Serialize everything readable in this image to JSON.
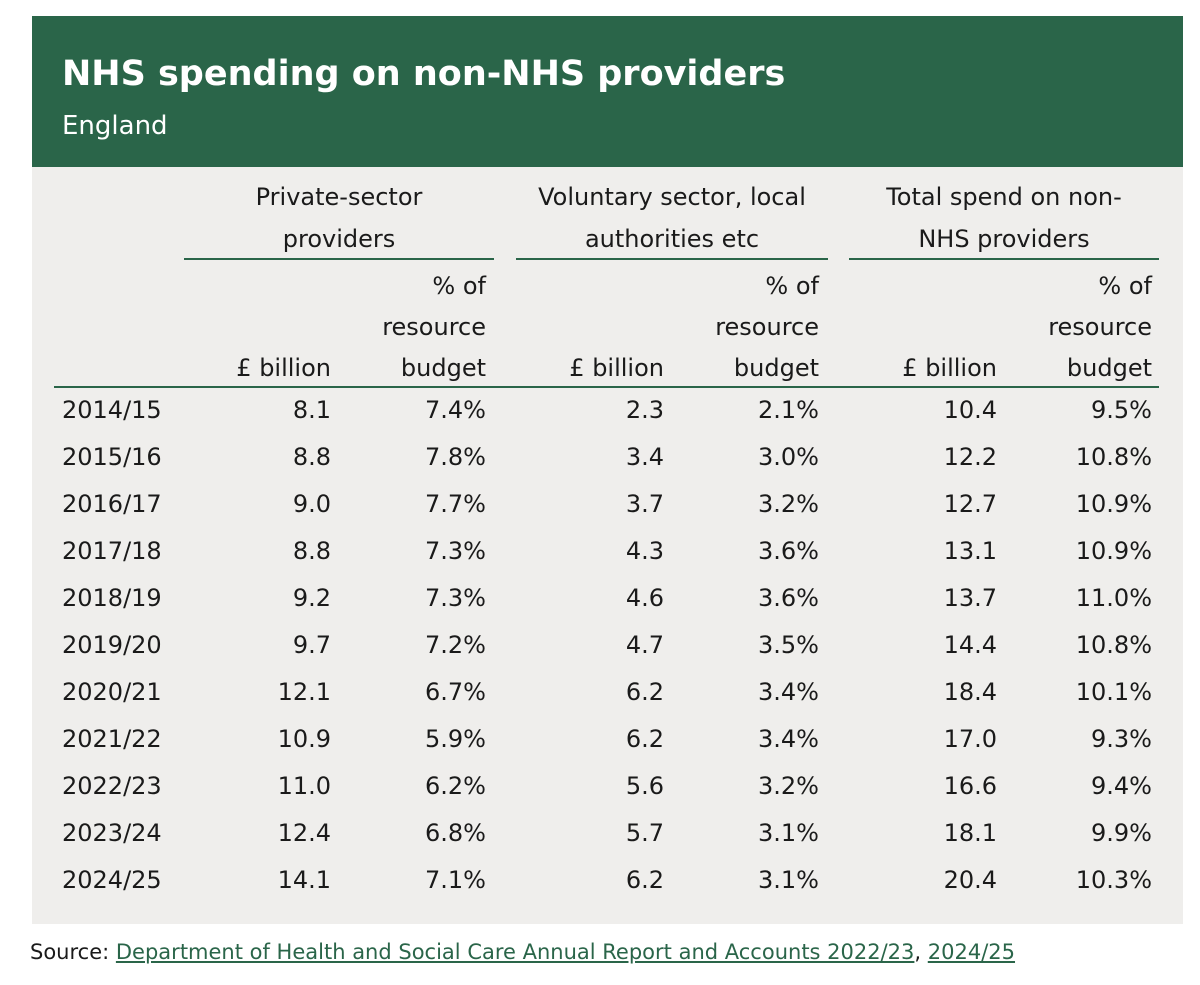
{
  "header": {
    "title": "NHS spending on non-NHS providers",
    "subtitle": "England"
  },
  "columns": {
    "groups": [
      {
        "line1": "Private-sector",
        "line2": "providers"
      },
      {
        "line1": "Voluntary sector, local",
        "line2": "authorities etc"
      },
      {
        "line1": "Total spend on non-",
        "line2": "NHS providers"
      }
    ],
    "billion_label": "£ billion",
    "pct_line1": "% of",
    "pct_line2": "resource",
    "pct_line3": "budget"
  },
  "rows": [
    {
      "year": "2014/15",
      "priv_bn": "8.1",
      "priv_pct": "7.4%",
      "vol_bn": "2.3",
      "vol_pct": "2.1%",
      "tot_bn": "10.4",
      "tot_pct": "9.5%"
    },
    {
      "year": "2015/16",
      "priv_bn": "8.8",
      "priv_pct": "7.8%",
      "vol_bn": "3.4",
      "vol_pct": "3.0%",
      "tot_bn": "12.2",
      "tot_pct": "10.8%"
    },
    {
      "year": "2016/17",
      "priv_bn": "9.0",
      "priv_pct": "7.7%",
      "vol_bn": "3.7",
      "vol_pct": "3.2%",
      "tot_bn": "12.7",
      "tot_pct": "10.9%"
    },
    {
      "year": "2017/18",
      "priv_bn": "8.8",
      "priv_pct": "7.3%",
      "vol_bn": "4.3",
      "vol_pct": "3.6%",
      "tot_bn": "13.1",
      "tot_pct": "10.9%"
    },
    {
      "year": "2018/19",
      "priv_bn": "9.2",
      "priv_pct": "7.3%",
      "vol_bn": "4.6",
      "vol_pct": "3.6%",
      "tot_bn": "13.7",
      "tot_pct": "11.0%"
    },
    {
      "year": "2019/20",
      "priv_bn": "9.7",
      "priv_pct": "7.2%",
      "vol_bn": "4.7",
      "vol_pct": "3.5%",
      "tot_bn": "14.4",
      "tot_pct": "10.8%"
    },
    {
      "year": "2020/21",
      "priv_bn": "12.1",
      "priv_pct": "6.7%",
      "vol_bn": "6.2",
      "vol_pct": "3.4%",
      "tot_bn": "18.4",
      "tot_pct": "10.1%"
    },
    {
      "year": "2021/22",
      "priv_bn": "10.9",
      "priv_pct": "5.9%",
      "vol_bn": "6.2",
      "vol_pct": "3.4%",
      "tot_bn": "17.0",
      "tot_pct": "9.3%"
    },
    {
      "year": "2022/23",
      "priv_bn": "11.0",
      "priv_pct": "6.2%",
      "vol_bn": "5.6",
      "vol_pct": "3.2%",
      "tot_bn": "16.6",
      "tot_pct": "9.4%"
    },
    {
      "year": "2023/24",
      "priv_bn": "12.4",
      "priv_pct": "6.8%",
      "vol_bn": "5.7",
      "vol_pct": "3.1%",
      "tot_bn": "18.1",
      "tot_pct": "9.9%"
    },
    {
      "year": "2024/25",
      "priv_bn": "14.1",
      "priv_pct": "7.1%",
      "vol_bn": "6.2",
      "vol_pct": "3.1%",
      "tot_bn": "20.4",
      "tot_pct": "10.3%"
    }
  ],
  "source": {
    "prefix": "Source: ",
    "link1": "Department of Health and Social Care Annual Report and Accounts 2022/23",
    "separator": ", ",
    "link2": "2024/25"
  },
  "colors": {
    "accent": "#2a6549",
    "panel": "#efeeec"
  }
}
